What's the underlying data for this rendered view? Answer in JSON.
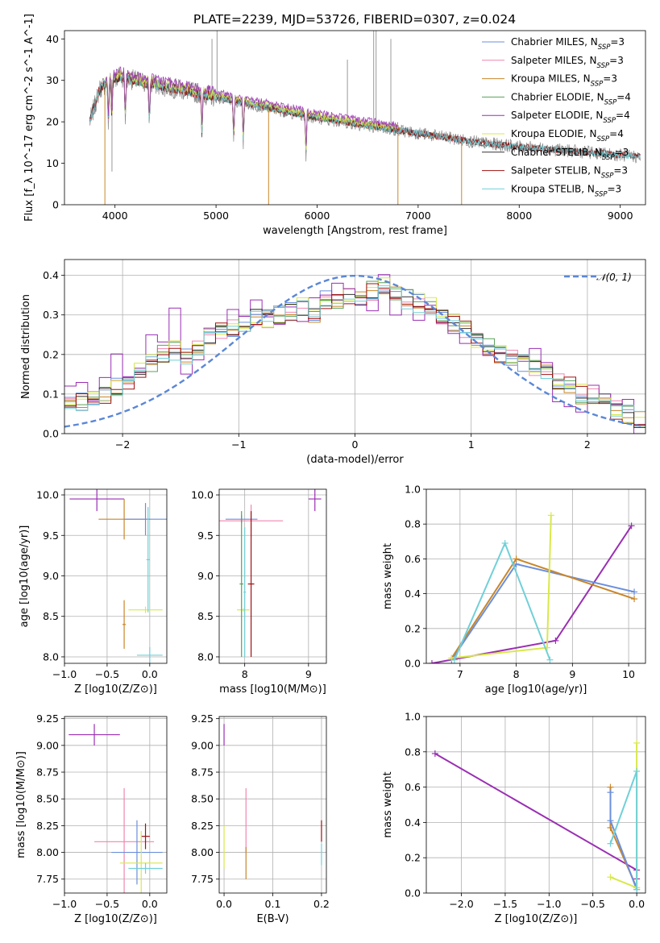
{
  "figure": {
    "title": "PLATE=2239, MJD=53726, FIBERID=0307, z=0.024"
  },
  "colors": [
    "#6b8fdc",
    "#ef86b0",
    "#c8862a",
    "#5aa05a",
    "#9a2fb3",
    "#d8e84a",
    "#333333",
    "#a01010",
    "#70d0d8"
  ],
  "chart_data": [
    {
      "type": "line",
      "title": "PLATE=2239, MJD=53726, FIBERID=0307, z=0.024",
      "xlabel": "wavelength [Angstrom, rest frame]",
      "ylabel": "Flux [f_λ 10^-17 erg cm^-2 s^-1 A^-1]",
      "xlim": [
        3500,
        9250
      ],
      "ylim": [
        0,
        42
      ],
      "xticks": [
        4000,
        5000,
        6000,
        7000,
        8000,
        9000
      ],
      "yticks": [
        0,
        10,
        20,
        30,
        40
      ],
      "grid": false,
      "legend_position": "top-right",
      "legend": [
        "Chabrier MILES, N_SSP=3",
        "Salpeter MILES, N_SSP=3",
        "Kroupa MILES, N_SSP=3",
        "Chabrier ELODIE, N_SSP=4",
        "Salpeter ELODIE, N_SSP=4",
        "Kroupa ELODIE, N_SSP=4",
        "Chabrier STELIB, N_SSP=3",
        "Salpeter STELIB, N_SSP=3",
        "Kroupa STELIB, N_SSP=3"
      ],
      "continuum": {
        "x": [
          3750,
          3850,
          3950,
          4050,
          4200,
          4400,
          4600,
          4800,
          5000,
          5300,
          5600,
          6000,
          6400,
          6800,
          7200,
          7600,
          8000,
          8500,
          9000,
          9200
        ],
        "y": [
          20,
          28,
          30,
          31,
          30,
          29,
          28,
          27,
          26,
          24.5,
          23,
          21,
          19.5,
          18,
          16.5,
          15,
          14,
          13,
          12,
          11.5
        ]
      },
      "spectrum_range": {
        "observed": [
          3750,
          9200
        ],
        "MILES": [
          3750,
          7430
        ],
        "ELODIE": [
          3900,
          6800
        ]
      },
      "spikes": [
        {
          "x": 4960,
          "y": 40
        },
        {
          "x": 5010,
          "y": 42
        },
        {
          "x": 5520,
          "y": 0
        },
        {
          "x": 6300,
          "y": 35
        },
        {
          "x": 6560,
          "y": 42
        },
        {
          "x": 6584,
          "y": 42
        },
        {
          "x": 6730,
          "y": 40
        },
        {
          "x": 6800,
          "y": 0
        },
        {
          "x": 7430,
          "y": 0
        },
        {
          "x": 3900,
          "y": 0
        },
        {
          "x": 3970,
          "y": 8
        }
      ]
    },
    {
      "type": "bar",
      "xlabel": "(data-model)/error",
      "ylabel": "Normed distribution",
      "xlim": [
        -2.5,
        2.5
      ],
      "ylim": [
        0,
        0.44
      ],
      "xticks": [
        -2,
        -1,
        0,
        1,
        2
      ],
      "yticks": [
        0.0,
        0.1,
        0.2,
        0.3,
        0.4
      ],
      "grid": true,
      "legend_position": "top-right",
      "legend": [
        "N(0,1)"
      ],
      "reference_curve": "N(0,1)",
      "bin_width": 0.1,
      "bin_start": -2.5,
      "histogram": [
        0.07,
        0.08,
        0.09,
        0.1,
        0.12,
        0.13,
        0.16,
        0.18,
        0.2,
        0.21,
        0.2,
        0.22,
        0.24,
        0.26,
        0.27,
        0.28,
        0.29,
        0.29,
        0.3,
        0.31,
        0.32,
        0.3,
        0.34,
        0.33,
        0.35,
        0.34,
        0.36,
        0.37,
        0.35,
        0.34,
        0.33,
        0.32,
        0.3,
        0.28,
        0.26,
        0.24,
        0.22,
        0.2,
        0.19,
        0.18,
        0.16,
        0.15,
        0.13,
        0.12,
        0.1,
        0.09,
        0.08,
        0.06,
        0.05,
        0.04
      ]
    },
    {
      "type": "scatter",
      "xlabel": "Z [log10(Z/Z⊙)]",
      "ylabel": "age [log10(age/yr)]",
      "xlim": [
        -1.0,
        0.2
      ],
      "ylim": [
        7.92,
        10.07
      ],
      "xticks": [
        -1.0,
        -0.5,
        0.0
      ],
      "yticks": [
        8.0,
        8.5,
        9.0,
        9.5,
        10.0
      ],
      "grid": true,
      "points": [
        {
          "series": 4,
          "x": -0.62,
          "y": 9.95,
          "xerr": 0.32,
          "yerr": 0.15
        },
        {
          "series": 2,
          "x": -0.3,
          "y": 9.7,
          "xerr": 0.3,
          "yerr": 0.25
        },
        {
          "series": 2,
          "x": -0.3,
          "y": 8.4,
          "xerr": 0.02,
          "yerr": 0.3
        },
        {
          "series": 0,
          "x": -0.05,
          "y": 9.7,
          "xerr": 0.25,
          "yerr": 0.2
        },
        {
          "series": 5,
          "x": -0.05,
          "y": 8.58,
          "xerr": 0.2,
          "yerr": 0.04
        },
        {
          "series": 8,
          "x": 0.0,
          "y": 8.02,
          "xerr": 0.15,
          "yerr": 0.1
        },
        {
          "series": 8,
          "x": -0.02,
          "y": 9.2,
          "xerr": 0.02,
          "yerr": 0.65
        }
      ]
    },
    {
      "type": "scatter",
      "xlabel": "mass [log10(M/M⊙)]",
      "ylabel": "",
      "xlim": [
        7.6,
        9.28
      ],
      "ylim": [
        7.92,
        10.07
      ],
      "xticks": [
        8,
        9
      ],
      "yticks": [
        8.0,
        8.5,
        9.0,
        9.5,
        10.0
      ],
      "grid": true,
      "points": [
        {
          "series": 4,
          "x": 9.1,
          "y": 9.95,
          "xerr": 0.1,
          "yerr": 0.15
        },
        {
          "series": 1,
          "x": 8.1,
          "y": 9.68,
          "xerr": 0.5,
          "yerr": 0.2
        },
        {
          "series": 0,
          "x": 7.95,
          "y": 9.7,
          "xerr": 0.25,
          "yerr": 0.05
        },
        {
          "series": 7,
          "x": 8.1,
          "y": 8.9,
          "xerr": 0.05,
          "yerr": 0.9
        },
        {
          "series": 5,
          "x": 7.98,
          "y": 8.58,
          "xerr": 0.1,
          "yerr": 0.02
        },
        {
          "series": 3,
          "x": 7.95,
          "y": 8.9,
          "xerr": 0.03,
          "yerr": 0.9
        },
        {
          "series": 8,
          "x": 8.0,
          "y": 8.8,
          "xerr": 0.02,
          "yerr": 0.8
        }
      ]
    },
    {
      "type": "line",
      "xlabel": "age [log10(age/yr)]",
      "ylabel": "mass weight",
      "xlim": [
        6.4,
        10.3
      ],
      "ylim": [
        0,
        1
      ],
      "xticks": [
        7,
        8,
        9,
        10
      ],
      "yticks": [
        0.0,
        0.2,
        0.4,
        0.6,
        0.8,
        1.0
      ],
      "grid": true,
      "series": [
        {
          "color_index": 4,
          "x": [
            6.5,
            8.7,
            10.05
          ],
          "y": [
            0.0,
            0.13,
            0.79
          ]
        },
        {
          "color_index": 0,
          "x": [
            6.85,
            8.0,
            10.1
          ],
          "y": [
            0.02,
            0.57,
            0.41
          ]
        },
        {
          "color_index": 2,
          "x": [
            6.85,
            8.0,
            10.1
          ],
          "y": [
            0.03,
            0.6,
            0.37
          ]
        },
        {
          "color_index": 5,
          "x": [
            6.85,
            8.55,
            8.62
          ],
          "y": [
            0.03,
            0.09,
            0.85
          ]
        },
        {
          "color_index": 8,
          "x": [
            6.9,
            7.8,
            8.6
          ],
          "y": [
            0.02,
            0.69,
            0.02
          ]
        }
      ]
    },
    {
      "type": "scatter",
      "xlabel": "Z [log10(Z/Z⊙)]",
      "ylabel": "mass [log10(M/M⊙)]",
      "xlim": [
        -1.0,
        0.2
      ],
      "ylim": [
        7.62,
        9.27
      ],
      "xticks": [
        -1.0,
        -0.5,
        0.0
      ],
      "yticks": [
        7.75,
        8.0,
        8.25,
        8.5,
        8.75,
        9.0,
        9.25
      ],
      "grid": true,
      "points": [
        {
          "series": 4,
          "x": -0.65,
          "y": 9.1,
          "xerr": 0.3,
          "yerr": 0.1
        },
        {
          "series": 1,
          "x": -0.3,
          "y": 8.1,
          "xerr": 0.35,
          "yerr": 0.5
        },
        {
          "series": 0,
          "x": -0.15,
          "y": 8.0,
          "xerr": 0.3,
          "yerr": 0.3
        },
        {
          "series": 7,
          "x": -0.05,
          "y": 8.15,
          "xerr": 0.05,
          "yerr": 0.12
        },
        {
          "series": 5,
          "x": -0.1,
          "y": 7.9,
          "xerr": 0.25,
          "yerr": 0.3
        },
        {
          "series": 8,
          "x": -0.05,
          "y": 7.85,
          "xerr": 0.2,
          "yerr": 0.05
        }
      ]
    },
    {
      "type": "scatter",
      "xlabel": "E(B-V)",
      "ylabel": "",
      "xlim": [
        -0.01,
        0.21
      ],
      "ylim": [
        7.62,
        9.27
      ],
      "xticks": [
        0.0,
        0.1,
        0.2
      ],
      "yticks": [
        7.75,
        8.0,
        8.25,
        8.5,
        8.75,
        9.0,
        9.25
      ],
      "grid": true,
      "points": [
        {
          "series": 4,
          "x": 0.0,
          "y": 9.1,
          "xerr": 0,
          "yerr": 0.1
        },
        {
          "series": 5,
          "x": 0.0,
          "y": 8.05,
          "xerr": 0,
          "yerr": 0.2
        },
        {
          "series": 1,
          "x": 0.045,
          "y": 8.3,
          "xerr": 0,
          "yerr": 0.3
        },
        {
          "series": 2,
          "x": 0.045,
          "y": 7.9,
          "xerr": 0,
          "yerr": 0.15
        },
        {
          "series": 7,
          "x": 0.2,
          "y": 8.2,
          "xerr": 0,
          "yerr": 0.1
        },
        {
          "series": 8,
          "x": 0.2,
          "y": 7.98,
          "xerr": 0,
          "yerr": 0.1
        }
      ]
    },
    {
      "type": "line",
      "xlabel": "Z [log10(Z/Z⊙)]",
      "ylabel": "mass weight",
      "xlim": [
        -2.4,
        0.1
      ],
      "ylim": [
        0,
        1
      ],
      "xticks": [
        -2.0,
        -1.5,
        -1.0,
        -0.5,
        0.0
      ],
      "yticks": [
        0.0,
        0.2,
        0.4,
        0.6,
        0.8,
        1.0
      ],
      "grid": true,
      "series": [
        {
          "color_index": 4,
          "x": [
            -2.3,
            0.0,
            0.0
          ],
          "y": [
            0.79,
            0.13,
            0.08
          ]
        },
        {
          "color_index": 2,
          "x": [
            -0.3,
            -0.3,
            0.0
          ],
          "y": [
            0.6,
            0.37,
            0.03
          ]
        },
        {
          "color_index": 0,
          "x": [
            -0.3,
            -0.3,
            0.0
          ],
          "y": [
            0.57,
            0.41,
            0.02
          ]
        },
        {
          "color_index": 5,
          "x": [
            -0.3,
            0.0,
            0.0
          ],
          "y": [
            0.09,
            0.03,
            0.85
          ]
        },
        {
          "color_index": 8,
          "x": [
            -0.3,
            0.0,
            0.0
          ],
          "y": [
            0.28,
            0.69,
            0.02
          ]
        }
      ]
    }
  ]
}
